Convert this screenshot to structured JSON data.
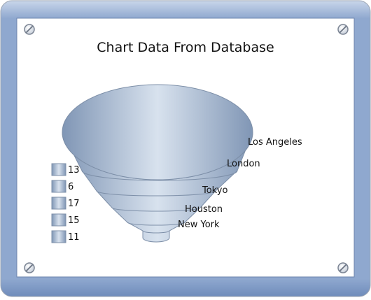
{
  "chart_data": {
    "type": "funnel",
    "title": "Chart Data From Database",
    "categories": [
      "Los Angeles",
      "London",
      "Tokyo",
      "Houston",
      "New York"
    ],
    "values": [
      11,
      15,
      17,
      6,
      13
    ],
    "legend_labels": [
      "13",
      "6",
      "17",
      "15",
      "11"
    ],
    "legend_position": "left",
    "colors": {
      "frame": "#7e9bc6",
      "frame_light": "#c9d6ea",
      "body": "#a5b7cf",
      "highlight": "#d8e2ee",
      "edge": "#7d8fa8"
    }
  }
}
